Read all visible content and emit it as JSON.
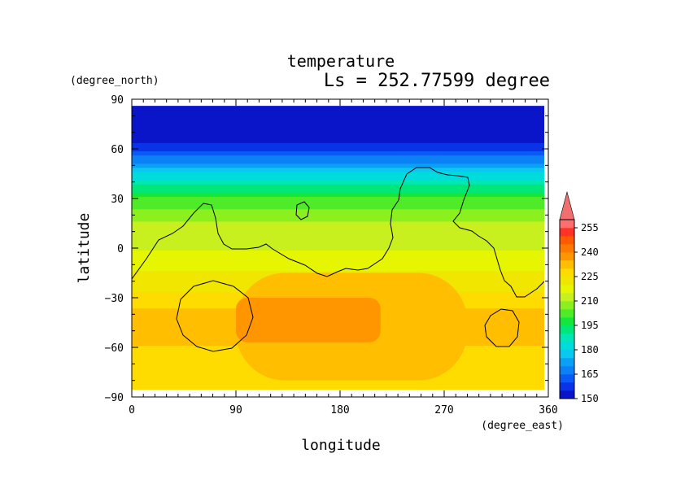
{
  "chart_data": {
    "type": "heatmap",
    "title": "temperature",
    "subtitle": "Ls = 252.77599 degree",
    "xlabel": "longitude",
    "ylabel": "latitude",
    "x_unit": "(degree_east)",
    "y_unit": "(degree_north)",
    "xlim": [
      0,
      360
    ],
    "ylim": [
      -90,
      90
    ],
    "x_ticks": [
      "0",
      "90",
      "180",
      "270",
      "360"
    ],
    "y_ticks": [
      "90",
      "60",
      "30",
      "0",
      "−30",
      "−60",
      "−90"
    ],
    "colorbar": {
      "levels": [
        150,
        155,
        160,
        165,
        170,
        175,
        180,
        185,
        190,
        195,
        200,
        205,
        210,
        215,
        220,
        225,
        230,
        235,
        240,
        245,
        250,
        255,
        260
      ],
      "labels": [
        "150",
        "165",
        "180",
        "195",
        "210",
        "225",
        "240",
        "255"
      ],
      "colors": [
        "#0a14c8",
        "#0a32e6",
        "#0a5af5",
        "#0a82f5",
        "#0aa0f5",
        "#0ac8f0",
        "#00dcdc",
        "#00e6b4",
        "#00e678",
        "#14e63c",
        "#50eb28",
        "#8cf01e",
        "#c8f01e",
        "#e6f500",
        "#f0e600",
        "#ffdc00",
        "#ffbe00",
        "#ff9600",
        "#ff7800",
        "#ff5a00",
        "#ff3228",
        "#ff6e6e"
      ],
      "extend_max_color": "#f07070"
    },
    "field_description": "temperature_by_latitude_band",
    "lat_profile": {
      "lat": [
        85,
        75,
        65,
        60,
        55,
        50,
        45,
        40,
        35,
        30,
        20,
        10,
        0,
        -10,
        -20,
        -30,
        -40,
        -50,
        -60,
        -70,
        -80,
        -85
      ],
      "temp": [
        150,
        150,
        153,
        158,
        165,
        172,
        180,
        187,
        193,
        200,
        208,
        212,
        214,
        218,
        222,
        226,
        232,
        232,
        230,
        228,
        225,
        225
      ]
    },
    "warm_core": {
      "lon_range": [
        90,
        290
      ],
      "lat_range": [
        -80,
        -15
      ],
      "temp": 232
    },
    "hot_spot": {
      "lon_range": [
        90,
        215
      ],
      "lat_range": [
        -57,
        -30
      ],
      "temp": 238
    }
  }
}
